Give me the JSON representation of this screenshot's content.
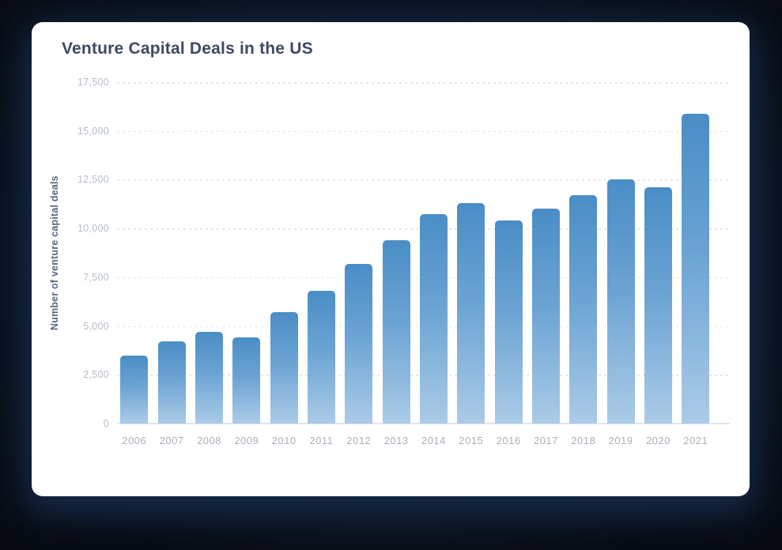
{
  "card": {
    "title": "Venture Capital Deals in the US"
  },
  "chart_data": {
    "type": "bar",
    "title": "Venture Capital Deals in the US",
    "xlabel": "",
    "ylabel": "Number of venture capital deals",
    "categories": [
      "2006",
      "2007",
      "2008",
      "2009",
      "2010",
      "2011",
      "2012",
      "2013",
      "2014",
      "2015",
      "2016",
      "2017",
      "2018",
      "2019",
      "2020",
      "2021"
    ],
    "values": [
      3500,
      4200,
      4700,
      4400,
      5700,
      6800,
      8200,
      9400,
      10750,
      11300,
      10400,
      11000,
      11700,
      12500,
      12100,
      15900
    ],
    "ylim": [
      0,
      17500
    ],
    "yticks": [
      {
        "value": 0,
        "label": "0"
      },
      {
        "value": 2500,
        "label": "2,500"
      },
      {
        "value": 5000,
        "label": "5,000"
      },
      {
        "value": 7500,
        "label": "7,500"
      },
      {
        "value": 10000,
        "label": "10,000"
      },
      {
        "value": 12500,
        "label": "12,500"
      },
      {
        "value": 15000,
        "label": "15,000"
      },
      {
        "value": 17500,
        "label": "17,500"
      }
    ],
    "grid": "horizontal-dashed",
    "legend": "none",
    "colors": {
      "bar_gradient_top": "#4a8dc6",
      "bar_gradient_bottom": "#abcbe7",
      "gridline": "#e5e7ec",
      "baseline": "#dbe6f0",
      "title_text": "#3e4a63",
      "axis_title_text": "#56677e",
      "y_tick_text": "#b6bcc6",
      "x_tick_text": "#a9b0bb",
      "card_background": "#ffffff",
      "page_background": "#0b0f18"
    }
  }
}
